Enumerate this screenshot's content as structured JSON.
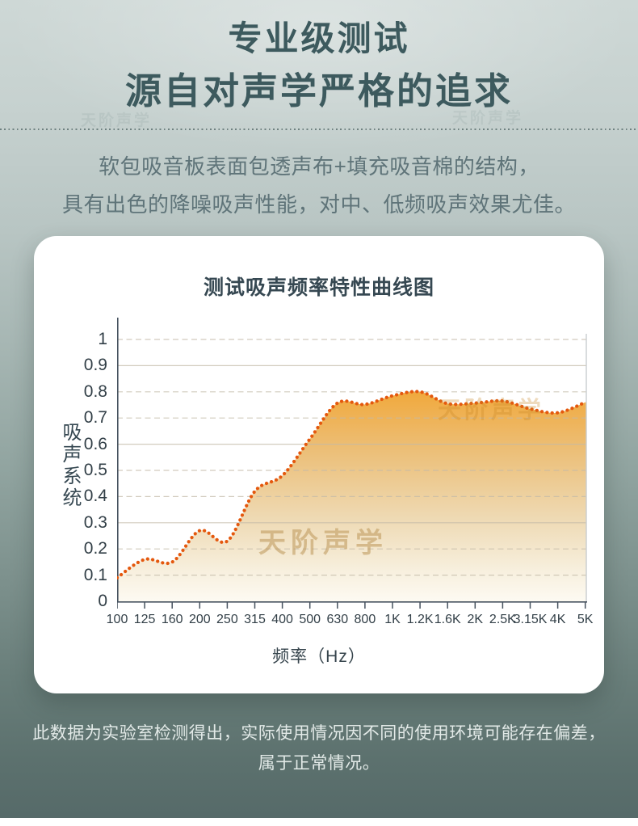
{
  "header": {
    "title_line1": "专业级测试",
    "title_line2": "源自对声学严格的追求",
    "desc_line1": "软包吸音板表面包透声布+填充吸音棉的结构，",
    "desc_line2": "具有出色的降噪吸声性能，对中、低频吸声效果尤佳。"
  },
  "watermark": "天阶声学",
  "chart_data": {
    "type": "area",
    "title": "测试吸声频率特性曲线图",
    "xlabel": "频率（Hz）",
    "ylabel": "吸声系统",
    "categories": [
      "100",
      "125",
      "160",
      "200",
      "250",
      "315",
      "400",
      "500",
      "630",
      "800",
      "1K",
      "1.2K",
      "1.6K",
      "2K",
      "2.5K",
      "3.15K",
      "4K",
      "5K"
    ],
    "values": [
      0.09,
      0.16,
      0.15,
      0.27,
      0.23,
      0.42,
      0.48,
      0.62,
      0.757,
      0.752,
      0.785,
      0.8,
      0.755,
      0.757,
      0.765,
      0.735,
      0.72,
      0.76
    ],
    "y_ticks": [
      "1",
      "0.9",
      "0.8",
      "0.7",
      "0.6",
      "0.5",
      "0.4",
      "0.3",
      "0.2",
      "0.1",
      "0"
    ],
    "ylim": [
      0,
      1
    ],
    "grid": "horizontal dashed, solid at 0.9/0.6/0.3",
    "solid_grid_values": [
      0.9,
      0.6,
      0.3
    ],
    "legend": "none",
    "line_style": "dotted",
    "line_color": "#e4580e",
    "fill_colors": [
      "#f1a83a",
      "#ecbe76",
      "#eed9b2",
      "#f7efdd",
      "#fdfaf2"
    ],
    "grid_color": "#c3b9a8",
    "axis_color": "#46525f"
  },
  "footer": {
    "line1": "此数据为实验室检测得出，实际使用情况因不同的使用环境可能存在偏差，",
    "line2": "属于正常情况。"
  }
}
